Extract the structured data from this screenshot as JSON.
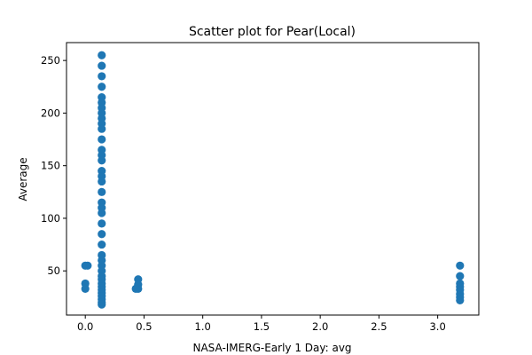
{
  "chart_data": {
    "type": "scatter",
    "title": "Scatter plot for Pear(Local)",
    "xlabel": "NASA-IMERG-Early 1 Day: avg",
    "ylabel": "Average",
    "xlim": [
      -0.16,
      3.35
    ],
    "ylim": [
      8,
      267
    ],
    "xticks": [
      {
        "value": 0.0,
        "label": "0.0"
      },
      {
        "value": 0.5,
        "label": "0.5"
      },
      {
        "value": 1.0,
        "label": "1.0"
      },
      {
        "value": 1.5,
        "label": "1.5"
      },
      {
        "value": 2.0,
        "label": "2.0"
      },
      {
        "value": 2.5,
        "label": "2.5"
      },
      {
        "value": 3.0,
        "label": "3.0"
      }
    ],
    "yticks": [
      {
        "value": 50,
        "label": "50"
      },
      {
        "value": 100,
        "label": "100"
      },
      {
        "value": 150,
        "label": "150"
      },
      {
        "value": 200,
        "label": "200"
      },
      {
        "value": 250,
        "label": "250"
      }
    ],
    "grid": false,
    "color": "#1f77b4",
    "points": [
      {
        "x": 0.0,
        "y": 55
      },
      {
        "x": 0.02,
        "y": 55
      },
      {
        "x": 0.0,
        "y": 38
      },
      {
        "x": 0.0,
        "y": 33
      },
      {
        "x": 0.14,
        "y": 255
      },
      {
        "x": 0.14,
        "y": 245
      },
      {
        "x": 0.14,
        "y": 235
      },
      {
        "x": 0.14,
        "y": 225
      },
      {
        "x": 0.14,
        "y": 215
      },
      {
        "x": 0.14,
        "y": 210
      },
      {
        "x": 0.14,
        "y": 205
      },
      {
        "x": 0.14,
        "y": 200
      },
      {
        "x": 0.14,
        "y": 195
      },
      {
        "x": 0.14,
        "y": 190
      },
      {
        "x": 0.14,
        "y": 185
      },
      {
        "x": 0.14,
        "y": 175
      },
      {
        "x": 0.14,
        "y": 165
      },
      {
        "x": 0.14,
        "y": 160
      },
      {
        "x": 0.14,
        "y": 155
      },
      {
        "x": 0.14,
        "y": 145
      },
      {
        "x": 0.14,
        "y": 140
      },
      {
        "x": 0.14,
        "y": 135
      },
      {
        "x": 0.14,
        "y": 125
      },
      {
        "x": 0.14,
        "y": 115
      },
      {
        "x": 0.14,
        "y": 110
      },
      {
        "x": 0.14,
        "y": 105
      },
      {
        "x": 0.14,
        "y": 95
      },
      {
        "x": 0.14,
        "y": 85
      },
      {
        "x": 0.14,
        "y": 75
      },
      {
        "x": 0.14,
        "y": 65
      },
      {
        "x": 0.14,
        "y": 60
      },
      {
        "x": 0.14,
        "y": 55
      },
      {
        "x": 0.14,
        "y": 50
      },
      {
        "x": 0.14,
        "y": 45
      },
      {
        "x": 0.14,
        "y": 42
      },
      {
        "x": 0.14,
        "y": 38
      },
      {
        "x": 0.14,
        "y": 35
      },
      {
        "x": 0.14,
        "y": 32
      },
      {
        "x": 0.14,
        "y": 29
      },
      {
        "x": 0.14,
        "y": 26
      },
      {
        "x": 0.14,
        "y": 23
      },
      {
        "x": 0.14,
        "y": 20
      },
      {
        "x": 0.14,
        "y": 18
      },
      {
        "x": 0.45,
        "y": 42
      },
      {
        "x": 0.45,
        "y": 37
      },
      {
        "x": 0.45,
        "y": 33
      },
      {
        "x": 0.43,
        "y": 33
      },
      {
        "x": 3.19,
        "y": 55
      },
      {
        "x": 3.19,
        "y": 45
      },
      {
        "x": 3.19,
        "y": 38
      },
      {
        "x": 3.19,
        "y": 35
      },
      {
        "x": 3.19,
        "y": 32
      },
      {
        "x": 3.19,
        "y": 28
      },
      {
        "x": 3.19,
        "y": 25
      },
      {
        "x": 3.19,
        "y": 22
      }
    ]
  }
}
